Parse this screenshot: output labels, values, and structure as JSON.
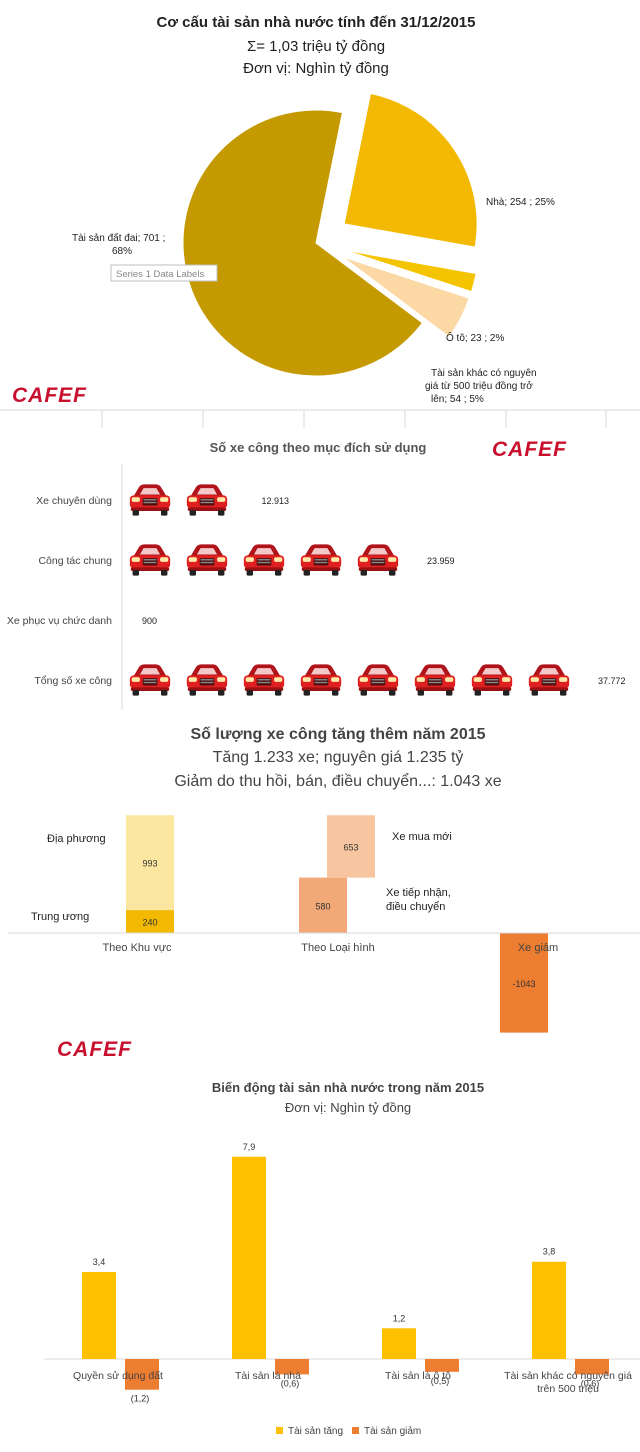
{
  "brand": {
    "logo_text": "CAFEF",
    "logo_color": "#c8102e"
  },
  "colors": {
    "gold": "#c49a00",
    "amber": "#f2b900",
    "light_peach": "#fbd8a4",
    "pale": "#fce7a0",
    "peach": "#f7c6a0",
    "salmon": "#f2a877",
    "orange": "#ed7d31",
    "yellow": "#ffc000",
    "car_red": "#e02020"
  },
  "chart_data": [
    {
      "type": "pie",
      "title": "Cơ cấu tài sản nhà nước tính đến 31/12/2015",
      "subtitle": "Σ= 1,03 triệu tỷ đồng",
      "unit": "Đơn vị: Nghìn tỷ đồng",
      "tooltip": "Series 1 Data Labels",
      "slices": [
        {
          "name": "Tài sản đất đai",
          "value": 701,
          "percent": "68%",
          "label_a": "Tài sản đất đai;  701 ;",
          "label_b": "68%",
          "color": "#c49a00"
        },
        {
          "name": "Nhà",
          "value": 254,
          "percent": "25%",
          "label_a": "Nhà;  254 ; 25%",
          "color": "#f2b900"
        },
        {
          "name": "Ô tô",
          "value": 23,
          "percent": "2%",
          "label_a": "Ô tô;  23 ; 2%",
          "color": "#f5c400"
        },
        {
          "name": "Tài sản khác có nguyên giá từ 500 triệu đồng trở lên",
          "value": 54,
          "percent": "5%",
          "label_a": "Tài sản khác có nguyên",
          "label_b": "giá từ 500 triệu đồng trở",
          "label_c": "lên;  54 ; 5%",
          "color": "#fbd8a4"
        }
      ]
    },
    {
      "type": "bar",
      "title": "Số xe công theo mục đích sử dụng",
      "categories": [
        "Xe chuyên dùng",
        "Công tác chung",
        "Xe phục vụ chức danh",
        "Tổng số xe công"
      ],
      "values": [
        12913,
        23959,
        900,
        37772
      ],
      "value_labels": [
        "12.913",
        "23.959",
        "900",
        "37.772"
      ],
      "unit_per_icon": 4500
    },
    {
      "type": "bar",
      "title": "Số lượng xe công tăng thêm năm 2015",
      "subtitle": "Tăng 1.233 xe; nguyên giá 1.235 tỷ",
      "subtitle2": "Giảm do thu hồi, bán, điều chuyển...: 1.043 xe",
      "categories": [
        "Theo Khu vực",
        "Theo Loại hình",
        "Xe giảm"
      ],
      "stacks": [
        {
          "category": "Theo Khu vực",
          "parts": [
            {
              "name": "Trung ương",
              "value": 240,
              "label": "240",
              "color": "#f2b900"
            },
            {
              "name": "Địa phương",
              "value": 993,
              "label": "993",
              "color": "#fce7a0"
            }
          ]
        },
        {
          "category": "Theo Loại hình",
          "parts": [
            {
              "name": "Xe tiếp nhận, điều chuyển",
              "value": 580,
              "label": "580",
              "color": "#f2a877"
            },
            {
              "name": "Xe mua mới",
              "value": 653,
              "label": "653",
              "color": "#f7c6a0"
            }
          ]
        },
        {
          "category": "Xe giảm",
          "parts": [
            {
              "name": "Xe giảm",
              "value": -1043,
              "label": "-1043",
              "color": "#ed7d31"
            }
          ]
        }
      ],
      "annotations": {
        "dia_phuong": "Địa phương",
        "trung_uong": "Trung ương",
        "xe_mua_moi": "Xe mua mới",
        "xe_tiep_nhan_1": "Xe tiếp nhận,",
        "xe_tiep_nhan_2": "điều chuyển"
      }
    },
    {
      "type": "bar",
      "title": "Biến động tài sản nhà nước trong năm 2015",
      "subtitle": "Đơn vị: Nghìn tỷ đồng",
      "categories": [
        "Quyền sử dụng đất",
        "Tài sản là nhà",
        "Tài sản là ô tô",
        "Tài sản khác có nguyên giá trên 500 triệu"
      ],
      "category_lines": [
        [
          "Quyền sử dụng đất"
        ],
        [
          "Tài sản là nhà"
        ],
        [
          "Tài sản là ô tô"
        ],
        [
          "Tài sản khác có nguyên giá",
          "trên 500 triệu"
        ]
      ],
      "series": [
        {
          "name": "Tài sản tăng",
          "values": [
            3.4,
            7.9,
            1.2,
            3.8
          ],
          "labels": [
            "3,4",
            "7,9",
            "1,2",
            "3,8"
          ],
          "color": "#ffc000"
        },
        {
          "name": "Tài sản giảm",
          "values": [
            -1.2,
            -0.6,
            -0.5,
            -0.6
          ],
          "labels": [
            "(1,2)",
            "(0,6)",
            "(0,5)",
            "(0,6)"
          ],
          "color": "#ed7d31"
        }
      ],
      "legend_position": "bottom"
    }
  ]
}
